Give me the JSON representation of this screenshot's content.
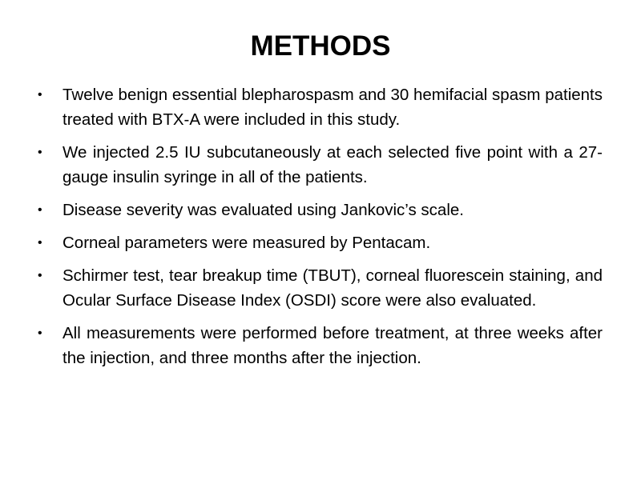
{
  "slide": {
    "title": "METHODS",
    "bullet_glyph": "•",
    "bullets": [
      "Twelve benign essential blepharospasm and 30 hemifacial spasm patients treated with BTX-A were included in this study.",
      "We injected 2.5 IU subcutaneously at each selected five point with a 27-gauge insulin syringe in all of the patients.",
      "Disease severity was evaluated using Jankovic’s scale.",
      "Corneal parameters were measured by Pentacam.",
      "Schirmer test, tear breakup time (TBUT), corneal fluorescein staining, and Ocular Surface Disease Index (OSDI) score were also evaluated.",
      "All measurements were performed before treatment, at three weeks after the injection, and three months after the injection."
    ]
  }
}
